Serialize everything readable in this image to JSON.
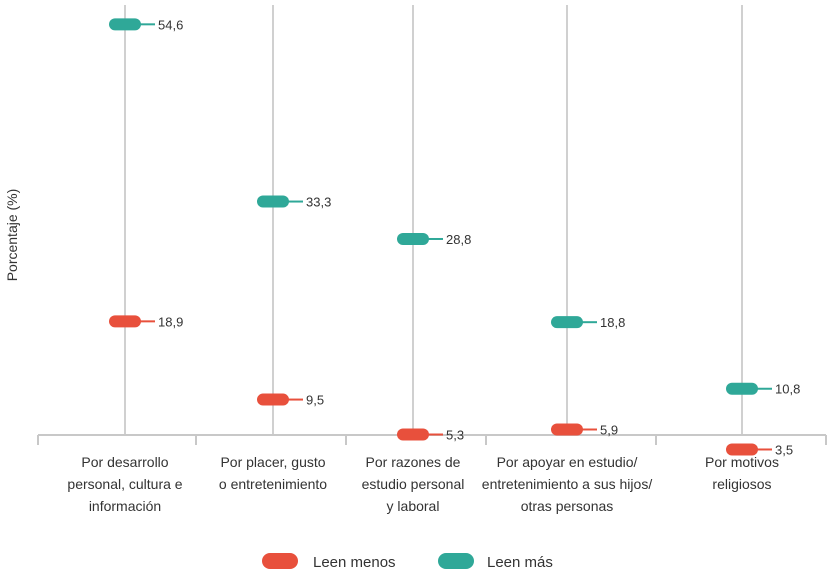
{
  "chart_data": {
    "type": "dot",
    "ylabel": "Porcentaje (%)",
    "ylim": [
      0,
      60
    ],
    "grid": false,
    "legend_position": "bottom",
    "categories": [
      [
        "Por desarrollo",
        "personal, cultura e",
        "información"
      ],
      [
        "Por placer, gusto",
        "o entretenimiento"
      ],
      [
        "Por razones de",
        "estudio personal",
        "y laboral"
      ],
      [
        "Por apoyar en estudio/",
        "entretenimiento a sus hijos/",
        "otras personas"
      ],
      [
        "Por motivos",
        "religiosos"
      ]
    ],
    "series": [
      {
        "name": "Leen menos",
        "color": "#e8503c",
        "values": [
          18.9,
          9.5,
          5.3,
          5.9,
          3.5
        ],
        "labels": [
          "18,9",
          "9,5",
          "5,3",
          "5,9",
          "3,5"
        ]
      },
      {
        "name": "Leen más",
        "color": "#2fa898",
        "values": [
          54.6,
          33.3,
          28.8,
          18.8,
          10.8
        ],
        "labels": [
          "54,6",
          "33,3",
          "28,8",
          "18,8",
          "10,8"
        ]
      }
    ]
  },
  "colors": {
    "axis": "#c8c8c8",
    "stem": "#d0d0d0",
    "text": "#333333"
  }
}
